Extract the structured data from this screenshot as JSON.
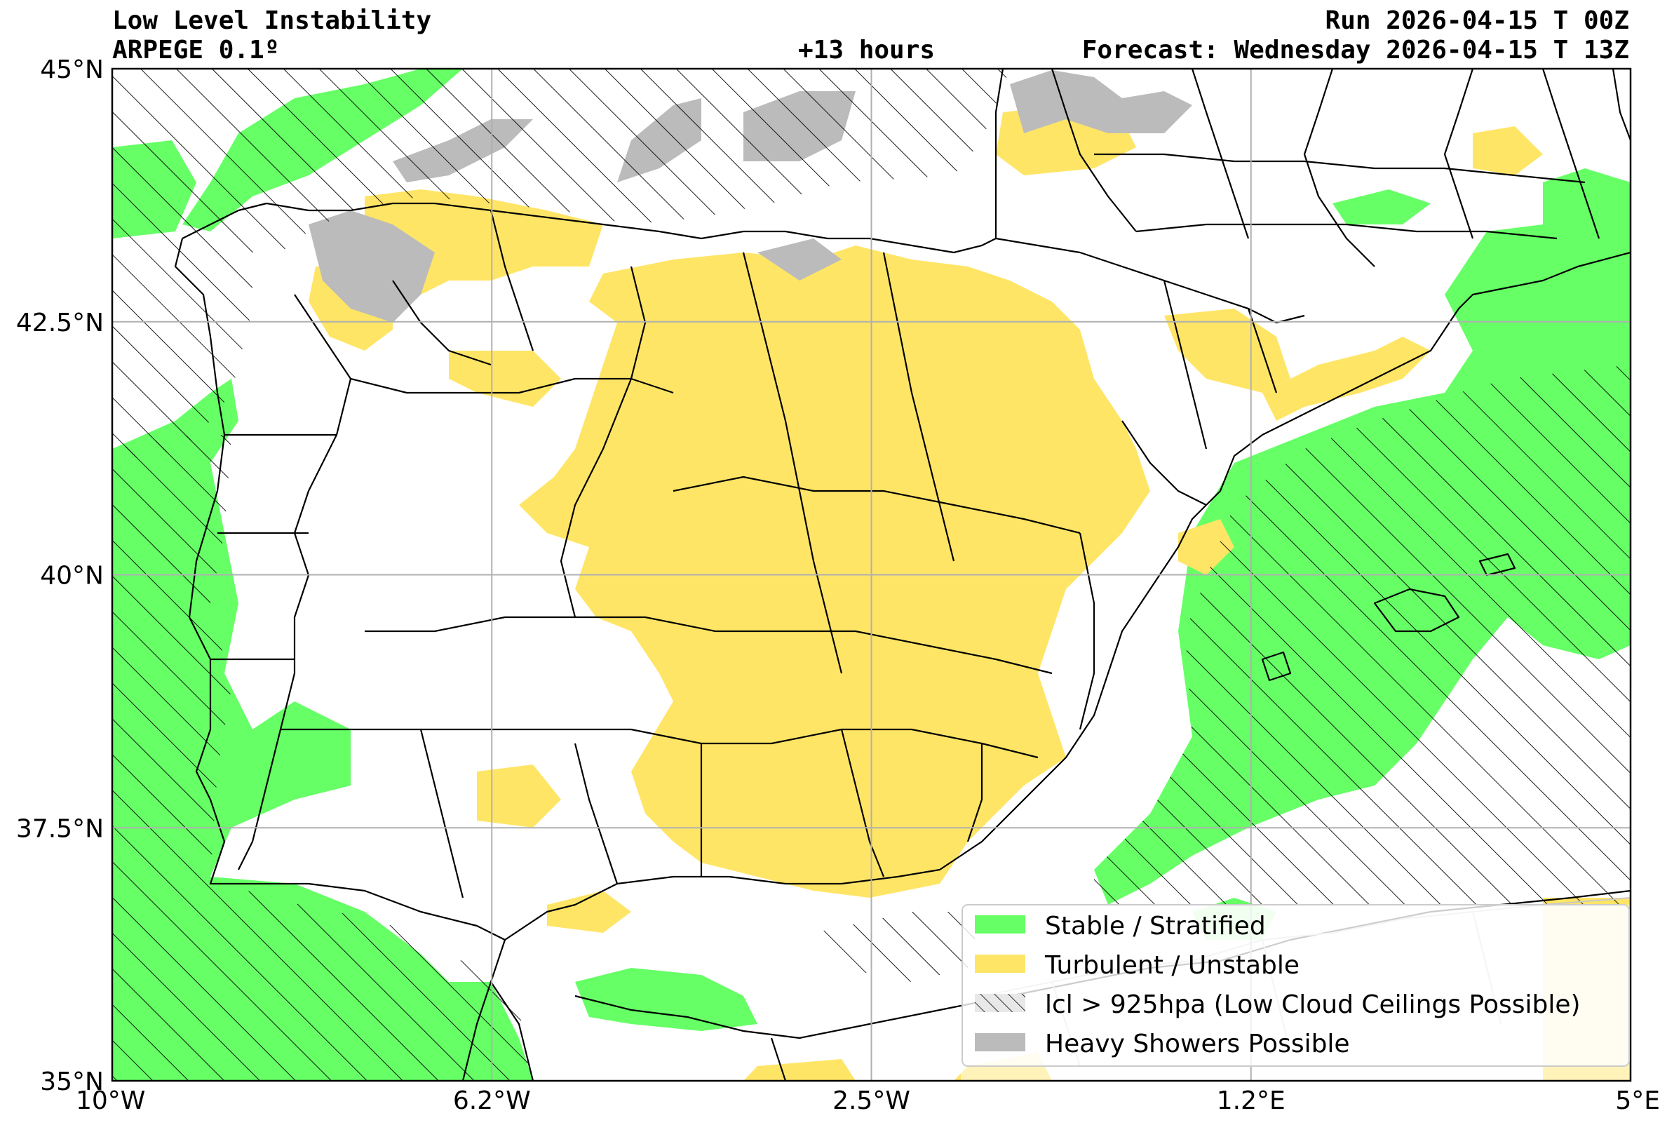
{
  "header": {
    "title": "Low Level Instability",
    "model": "ARPEGE 0.1º",
    "lead": "+13 hours",
    "run": "Run 2026-04-15 T 00Z",
    "forecast": "Forecast: Wednesday 2026-04-15 T 13Z"
  },
  "axes": {
    "lon_range": [
      -10,
      5
    ],
    "lat_range": [
      35,
      45
    ],
    "lon_ticks": [
      {
        "value": -10,
        "label": "10°W"
      },
      {
        "value": -6.25,
        "label": "6.2°W"
      },
      {
        "value": -2.5,
        "label": "2.5°W"
      },
      {
        "value": 1.25,
        "label": "1.2°E"
      },
      {
        "value": 5,
        "label": "5°E"
      }
    ],
    "lat_ticks": [
      {
        "value": 45,
        "label": "45°N"
      },
      {
        "value": 42.5,
        "label": "42.5°N"
      },
      {
        "value": 40,
        "label": "40°N"
      },
      {
        "value": 37.5,
        "label": "37.5°N"
      },
      {
        "value": 35,
        "label": "35°N"
      }
    ],
    "grid": true
  },
  "legend": {
    "placement": "bottom-right",
    "items": [
      {
        "label": "Stable / Stratified",
        "color": "#66ff66",
        "pattern": "solid"
      },
      {
        "label": "Turbulent / Unstable",
        "color": "#ffe566",
        "pattern": "solid"
      },
      {
        "label": "lcl > 925hpa (Low Cloud Ceilings Possible)",
        "color": "#dddddd",
        "pattern": "hatch"
      },
      {
        "label": "Heavy Showers Possible",
        "color": "#bbbbbb",
        "pattern": "solid"
      }
    ]
  },
  "colors": {
    "stable": "#66ff66",
    "unstable": "#ffe566",
    "showers": "#bbbbbb",
    "grid": "#b0b0b0",
    "borders": "#000000"
  }
}
